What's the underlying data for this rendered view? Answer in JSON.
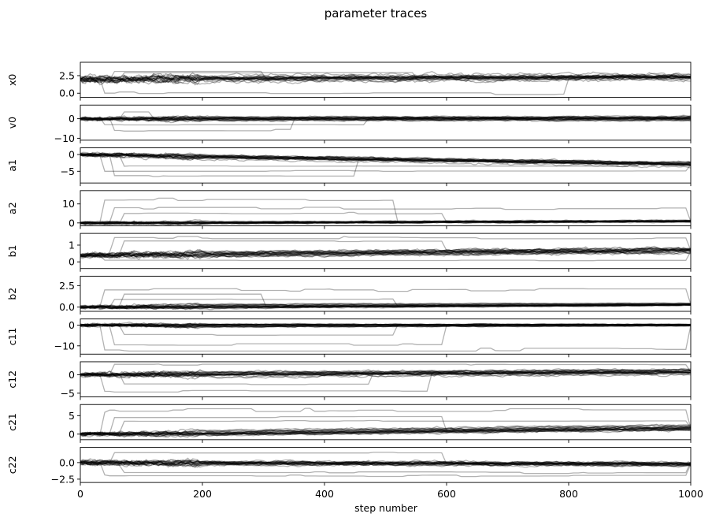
{
  "chart_data": {
    "type": "line",
    "title": "parameter traces",
    "xlabel": "step number",
    "xlim": [
      0,
      1000
    ],
    "x_ticks": [
      0,
      200,
      400,
      600,
      800,
      1000
    ],
    "x_tick_labels": [
      "0",
      "200",
      "400",
      "600",
      "800",
      "1000"
    ],
    "line_color": "#000000",
    "line_alpha": 0.3,
    "grid": false,
    "panels": [
      {
        "name": "x0",
        "ylim": [
          -0.6,
          4.4
        ],
        "yticks": [
          0.0,
          2.5
        ],
        "ytick_labels": [
          "0.0",
          "2.5"
        ],
        "center_start": 2.0,
        "center_end": 2.3,
        "spread_start": 1.0,
        "spread_end": 0.9,
        "outliers": [
          {
            "level": 0.0,
            "until": 800
          },
          {
            "level": 3.1,
            "until": 300
          },
          {
            "level": 2.9,
            "until": 550
          }
        ]
      },
      {
        "name": "v0",
        "ylim": [
          -11,
          7
        ],
        "yticks": [
          -10,
          0
        ],
        "ytick_labels": [
          "−10",
          "0"
        ],
        "center_start": 0.0,
        "center_end": 0.2,
        "spread_start": 1.8,
        "spread_end": 2.0,
        "outliers": [
          {
            "level": -3.0,
            "until": 470
          },
          {
            "level": -6.0,
            "until": 350
          },
          {
            "level": 3.5,
            "until": 120
          }
        ]
      },
      {
        "name": "a1",
        "ylim": [
          -8.5,
          2.0
        ],
        "yticks": [
          -5,
          0
        ],
        "ytick_labels": [
          "−5",
          "0"
        ],
        "center_start": 0.0,
        "center_end": -2.8,
        "spread_start": 1.2,
        "spread_end": 1.3,
        "outliers": [
          {
            "level": -5.0,
            "until": 1000
          },
          {
            "level": -6.3,
            "until": 450
          },
          {
            "level": -3.5,
            "until": 900
          }
        ]
      },
      {
        "name": "a2",
        "ylim": [
          -1.5,
          17
        ],
        "yticks": [
          0,
          10
        ],
        "ytick_labels": [
          "0",
          "10"
        ],
        "center_start": 0.0,
        "center_end": 1.0,
        "spread_start": 1.5,
        "spread_end": 1.2,
        "outliers": [
          {
            "level": 12.0,
            "until": 520
          },
          {
            "level": 8.0,
            "until": 1000
          },
          {
            "level": 5.0,
            "until": 600
          }
        ]
      },
      {
        "name": "b1",
        "ylim": [
          -0.4,
          1.7
        ],
        "yticks": [
          0,
          1
        ],
        "ytick_labels": [
          "0",
          "1"
        ],
        "center_start": 0.4,
        "center_end": 0.7,
        "spread_start": 0.3,
        "spread_end": 0.35,
        "outliers": [
          {
            "level": 0.1,
            "until": 1000
          },
          {
            "level": 1.45,
            "until": 1000
          },
          {
            "level": 1.25,
            "until": 600
          }
        ]
      },
      {
        "name": "b2",
        "ylim": [
          -0.5,
          3.6
        ],
        "yticks": [
          0.0,
          2.5
        ],
        "ytick_labels": [
          "0.0",
          "2.5"
        ],
        "center_start": 0.0,
        "center_end": 0.3,
        "spread_start": 0.4,
        "spread_end": 0.2,
        "outliers": [
          {
            "level": 2.0,
            "until": 1000
          },
          {
            "level": 0.9,
            "until": 520
          },
          {
            "level": 1.5,
            "until": 300
          }
        ]
      },
      {
        "name": "c11",
        "ylim": [
          -14,
          3
        ],
        "yticks": [
          -10,
          0
        ],
        "ytick_labels": [
          "−10",
          "0"
        ],
        "center_start": 0.0,
        "center_end": 0.2,
        "spread_start": 1.5,
        "spread_end": 0.8,
        "outliers": [
          {
            "level": -12.0,
            "until": 1000
          },
          {
            "level": -9.5,
            "until": 600
          },
          {
            "level": -4.5,
            "until": 520
          }
        ]
      },
      {
        "name": "c12",
        "ylim": [
          -6,
          3.5
        ],
        "yticks": [
          -5,
          0
        ],
        "ytick_labels": [
          "−5",
          "0"
        ],
        "center_start": 0.0,
        "center_end": 0.8,
        "spread_start": 1.2,
        "spread_end": 1.3,
        "outliers": [
          {
            "level": -4.5,
            "until": 570
          },
          {
            "level": 2.8,
            "until": 1000
          },
          {
            "level": -2.5,
            "until": 480
          }
        ]
      },
      {
        "name": "c21",
        "ylim": [
          -1.5,
          8
        ],
        "yticks": [
          0,
          5
        ],
        "ytick_labels": [
          "0",
          "5"
        ],
        "center_start": 0.0,
        "center_end": 1.8,
        "spread_start": 1.0,
        "spread_end": 1.2,
        "outliers": [
          {
            "level": 6.5,
            "until": 1000
          },
          {
            "level": 4.5,
            "until": 600
          },
          {
            "level": 3.5,
            "until": 1000
          }
        ]
      },
      {
        "name": "c22",
        "ylim": [
          -3.0,
          2.3
        ],
        "yticks": [
          -2.5,
          0.0
        ],
        "ytick_labels": [
          "−2.5",
          "0.0"
        ],
        "center_start": 0.0,
        "center_end": -0.2,
        "spread_start": 0.8,
        "spread_end": 0.7,
        "outliers": [
          {
            "level": -2.0,
            "until": 1000
          },
          {
            "level": 1.5,
            "until": 600
          },
          {
            "level": -1.5,
            "until": 1000
          }
        ]
      }
    ]
  }
}
